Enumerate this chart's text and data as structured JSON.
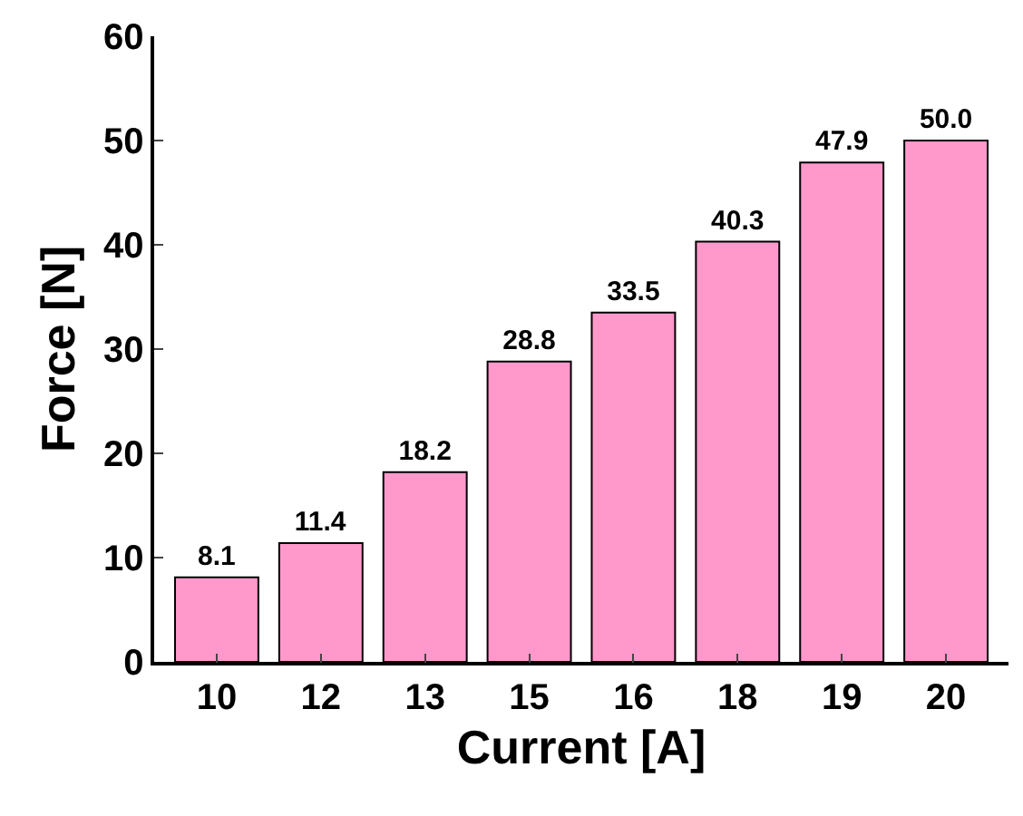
{
  "chart_data": {
    "type": "bar",
    "xlabel": "Current [A]",
    "ylabel": "Force [N]",
    "categories": [
      "10",
      "12",
      "13",
      "15",
      "16",
      "18",
      "19",
      "20"
    ],
    "values": [
      8.1,
      11.4,
      18.2,
      28.8,
      33.5,
      40.3,
      47.9,
      50.0
    ],
    "value_labels": [
      "8.1",
      "11.4",
      "18.2",
      "28.8",
      "33.5",
      "40.3",
      "47.9",
      "50.0"
    ],
    "color": "#ff99cc",
    "ylim": [
      0,
      60
    ],
    "yticks": [
      0,
      10,
      20,
      30,
      40,
      50,
      60
    ],
    "grid": false,
    "legend": false
  }
}
